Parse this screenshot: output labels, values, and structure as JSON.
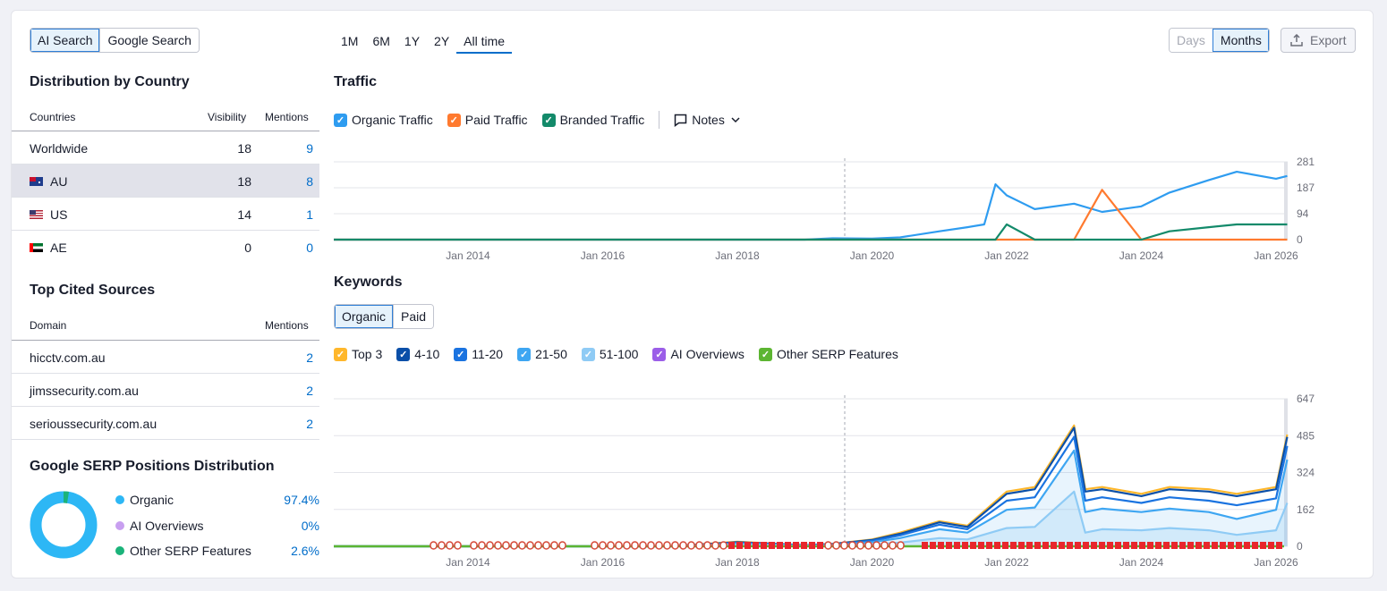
{
  "mode_toggle": {
    "options": [
      "AI Search",
      "Google Search"
    ],
    "active": 0
  },
  "country": {
    "title": "Distribution by Country",
    "headers": [
      "Countries",
      "Visibility",
      "Mentions"
    ],
    "rows": [
      {
        "name": "Worldwide",
        "visibility": "18",
        "mentions": "9",
        "flag": ""
      },
      {
        "name": "AU",
        "visibility": "18",
        "mentions": "8",
        "flag": "au-flag"
      },
      {
        "name": "US",
        "visibility": "14",
        "mentions": "1",
        "flag": "us-flag"
      },
      {
        "name": "AE",
        "visibility": "0",
        "mentions": "0",
        "flag": "ae-flag"
      }
    ]
  },
  "sources": {
    "title": "Top Cited Sources",
    "headers": [
      "Domain",
      "Mentions"
    ],
    "rows": [
      {
        "domain": "hicctv.com.au",
        "mentions": "2"
      },
      {
        "domain": "jimssecurity.com.au",
        "mentions": "2"
      },
      {
        "domain": "serioussecurity.com.au",
        "mentions": "2"
      }
    ]
  },
  "serp": {
    "title": "Google SERP Positions Distribution",
    "items": [
      {
        "label": "Organic",
        "value": "97.4%",
        "color": "#2db7f5",
        "pct": 97.4
      },
      {
        "label": "AI Overviews",
        "value": "0%",
        "color": "#c89ff0",
        "pct": 0
      },
      {
        "label": "Other SERP Features",
        "value": "2.6%",
        "color": "#1bb37a",
        "pct": 2.6
      }
    ]
  },
  "period_tabs": {
    "items": [
      "1M",
      "6M",
      "1Y",
      "2Y",
      "All time"
    ],
    "active": 4
  },
  "granularity": {
    "options": [
      "Days",
      "Months"
    ],
    "active": 1
  },
  "export_label": "Export",
  "traffic": {
    "title": "Traffic",
    "legend": [
      {
        "label": "Organic Traffic",
        "color": "#2e9cf0"
      },
      {
        "label": "Paid Traffic",
        "color": "#ff7a2f"
      },
      {
        "label": "Branded Traffic",
        "color": "#138a6a"
      }
    ],
    "notes_label": "Notes",
    "yticks": [
      "281",
      "187",
      "94",
      "0"
    ],
    "xticks": [
      "Jan 2014",
      "Jan 2016",
      "Jan 2018",
      "Jan 2020",
      "Jan 2022",
      "Jan 2024",
      "Jan 2026"
    ]
  },
  "keywords": {
    "title": "Keywords",
    "toggle": {
      "options": [
        "Organic",
        "Paid"
      ],
      "active": 0
    },
    "legend": [
      {
        "label": "Top 3",
        "color": "#ffb72b"
      },
      {
        "label": "4-10",
        "color": "#0a4fa8"
      },
      {
        "label": "11-20",
        "color": "#1a73e0"
      },
      {
        "label": "21-50",
        "color": "#3ea6f2"
      },
      {
        "label": "51-100",
        "color": "#8fcbf5"
      },
      {
        "label": "AI Overviews",
        "color": "#9b5ee8"
      },
      {
        "label": "Other SERP Features",
        "color": "#5cb532"
      }
    ],
    "yticks": [
      "647",
      "485",
      "324",
      "162",
      "0"
    ],
    "xticks": [
      "Jan 2014",
      "Jan 2016",
      "Jan 2018",
      "Jan 2020",
      "Jan 2022",
      "Jan 2024",
      "Jan 2026"
    ]
  },
  "chart_data": [
    {
      "type": "line",
      "title": "Traffic",
      "x": [
        "2012-01",
        "2013-01",
        "2014-01",
        "2015-01",
        "2016-01",
        "2017-01",
        "2018-01",
        "2019-01",
        "2019-06",
        "2020-01",
        "2020-06",
        "2021-01",
        "2021-06",
        "2021-09",
        "2021-11",
        "2022-01",
        "2022-06",
        "2023-01",
        "2023-06",
        "2024-01",
        "2024-06",
        "2025-01",
        "2025-06",
        "2026-01",
        "2026-03"
      ],
      "ylim": [
        0,
        281
      ],
      "series": [
        {
          "name": "Organic Traffic",
          "values": [
            0,
            0,
            0,
            0,
            0,
            0,
            0,
            0,
            5,
            4,
            8,
            30,
            45,
            55,
            200,
            160,
            110,
            130,
            100,
            120,
            170,
            215,
            245,
            220,
            230
          ]
        },
        {
          "name": "Paid Traffic",
          "values": [
            0,
            0,
            0,
            0,
            0,
            0,
            0,
            0,
            0,
            0,
            0,
            0,
            0,
            0,
            0,
            0,
            0,
            0,
            180,
            0,
            0,
            0,
            0,
            0,
            0
          ]
        },
        {
          "name": "Branded Traffic",
          "values": [
            0,
            0,
            0,
            0,
            0,
            0,
            0,
            0,
            0,
            0,
            0,
            0,
            0,
            0,
            0,
            55,
            0,
            0,
            0,
            0,
            30,
            45,
            55,
            55,
            55
          ]
        }
      ]
    },
    {
      "type": "area",
      "title": "Keywords",
      "x": [
        "2012-01",
        "2013-01",
        "2014-01",
        "2015-01",
        "2016-01",
        "2017-01",
        "2018-01",
        "2019-01",
        "2019-06",
        "2020-01",
        "2020-06",
        "2021-01",
        "2021-06",
        "2022-01",
        "2022-06",
        "2023-01",
        "2023-03",
        "2023-06",
        "2024-01",
        "2024-06",
        "2025-01",
        "2025-06",
        "2026-01",
        "2026-03"
      ],
      "ylim": [
        0,
        647
      ],
      "series": [
        {
          "name": "Top 3",
          "values": [
            0,
            0,
            0,
            0,
            0,
            0,
            20,
            5,
            10,
            30,
            60,
            110,
            90,
            240,
            260,
            530,
            250,
            260,
            230,
            260,
            250,
            230,
            260,
            490
          ]
        },
        {
          "name": "4-10",
          "values": [
            0,
            0,
            0,
            0,
            0,
            0,
            18,
            5,
            10,
            28,
            55,
            105,
            85,
            230,
            250,
            520,
            240,
            250,
            220,
            250,
            240,
            220,
            250,
            480
          ]
        },
        {
          "name": "11-20",
          "values": [
            0,
            0,
            0,
            0,
            0,
            0,
            15,
            4,
            8,
            24,
            48,
            95,
            75,
            200,
            215,
            480,
            200,
            215,
            190,
            215,
            200,
            180,
            210,
            440
          ]
        },
        {
          "name": "21-50",
          "values": [
            0,
            0,
            0,
            0,
            0,
            0,
            12,
            3,
            6,
            18,
            36,
            75,
            60,
            160,
            170,
            420,
            150,
            165,
            150,
            165,
            150,
            120,
            160,
            380
          ]
        },
        {
          "name": "51-100",
          "values": [
            0,
            0,
            0,
            0,
            0,
            0,
            6,
            2,
            3,
            8,
            16,
            36,
            30,
            80,
            85,
            240,
            60,
            75,
            70,
            80,
            70,
            50,
            70,
            190
          ]
        }
      ]
    }
  ]
}
